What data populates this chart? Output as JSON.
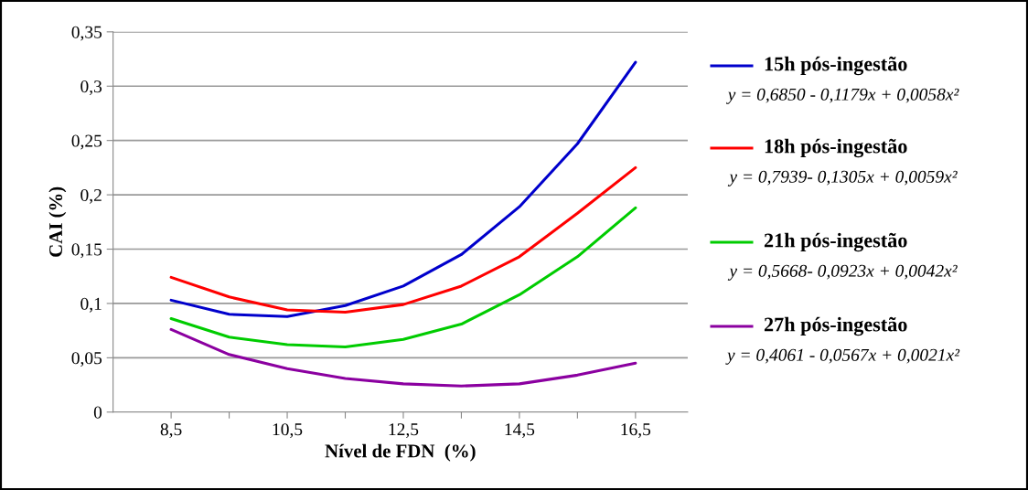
{
  "chart_data": {
    "type": "line",
    "xlabel": "Nível de FDN  (%)",
    "ylabel": "CAI (%)",
    "x": [
      8.5,
      9.5,
      10.5,
      11.5,
      12.5,
      13.5,
      14.5,
      15.5,
      16.5
    ],
    "series": [
      {
        "name": "15h pós-ingestão",
        "color": "#0000cc",
        "values": [
          0.103,
          0.09,
          0.088,
          0.098,
          0.116,
          0.145,
          0.189,
          0.247,
          0.322
        ]
      },
      {
        "name": "18h pós-ingestão",
        "color": "#ff0000",
        "values": [
          0.124,
          0.106,
          0.094,
          0.092,
          0.099,
          0.116,
          0.143,
          0.183,
          0.225
        ]
      },
      {
        "name": "21h pós-ingestão",
        "color": "#00cc00",
        "values": [
          0.086,
          0.069,
          0.062,
          0.06,
          0.067,
          0.081,
          0.108,
          0.143,
          0.188
        ]
      },
      {
        "name": "27h pós-ingestão",
        "color": "#8b00a0",
        "values": [
          0.076,
          0.053,
          0.04,
          0.031,
          0.026,
          0.024,
          0.026,
          0.034,
          0.045
        ]
      }
    ],
    "annotations": [
      "y = 0,6850 - 0,1179x + 0,0058x²",
      "y = 0,7939- 0,1305x + 0,0059x²",
      "y = 0,5668- 0,0923x + 0,0042x²",
      "y = 0,4061 - 0,0567x + 0,0021x²"
    ],
    "xlim": [
      7.5,
      17.4
    ],
    "xticks": [
      {
        "value": 8.5,
        "label": "8,5"
      },
      {
        "value": 9.5,
        "label": null
      },
      {
        "value": 10.5,
        "label": "10,5"
      },
      {
        "value": 11.5,
        "label": null
      },
      {
        "value": 12.5,
        "label": "12,5"
      },
      {
        "value": 13.5,
        "label": null
      },
      {
        "value": 14.5,
        "label": "14,5"
      },
      {
        "value": 15.5,
        "label": null
      },
      {
        "value": 16.5,
        "label": "16,5"
      }
    ],
    "ylim": [
      0,
      0.35
    ],
    "yticks": [
      {
        "value": 0,
        "label": "0"
      },
      {
        "value": 0.05,
        "label": "0,05"
      },
      {
        "value": 0.1,
        "label": "0,1"
      },
      {
        "value": 0.15,
        "label": "0,15"
      },
      {
        "value": 0.2,
        "label": "0,2"
      },
      {
        "value": 0.25,
        "label": "0,25"
      },
      {
        "value": 0.3,
        "label": "0,3"
      },
      {
        "value": 0.35,
        "label": "0,35"
      }
    ],
    "grid": "y",
    "legend": "right",
    "marker": "none",
    "line_style": "solid"
  }
}
